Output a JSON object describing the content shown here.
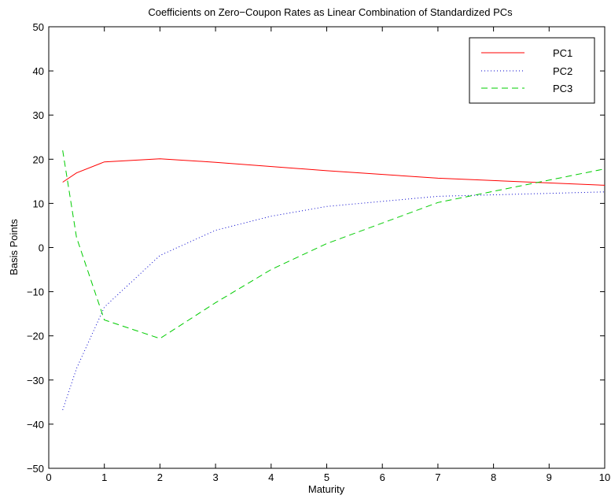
{
  "chart_data": {
    "type": "line",
    "title": "Coefficients on Zero−Coupon Rates as Linear Combination of Standardized PCs",
    "xlabel": "Maturity",
    "ylabel": "Basis Points",
    "xlim": [
      0,
      10
    ],
    "ylim": [
      -50,
      50
    ],
    "xticks": [
      0,
      1,
      2,
      3,
      4,
      5,
      6,
      7,
      8,
      9,
      10
    ],
    "yticks": [
      -50,
      -40,
      -30,
      -20,
      -10,
      0,
      10,
      20,
      30,
      40,
      50
    ],
    "xtick_labels": [
      "0",
      "1",
      "2",
      "3",
      "4",
      "5",
      "6",
      "7",
      "8",
      "9",
      "10"
    ],
    "ytick_labels": [
      "−50",
      "−40",
      "−30",
      "−20",
      "−10",
      "0",
      "10",
      "20",
      "30",
      "40",
      "50"
    ],
    "grid": false,
    "legend_position": "top-right",
    "series": [
      {
        "name": "PC1",
        "color": "#ff0000",
        "dash": "solid",
        "x": [
          0.25,
          0.5,
          1,
          2,
          3,
          5,
          7,
          10
        ],
        "y": [
          14.8,
          16.9,
          19.4,
          20.1,
          19.3,
          17.4,
          15.7,
          14.1
        ]
      },
      {
        "name": "PC2",
        "color": "#0000cc",
        "dash": "dotted",
        "x": [
          0.25,
          0.5,
          1,
          2,
          3,
          4,
          5,
          7,
          10
        ],
        "y": [
          -36.8,
          -27.4,
          -13.5,
          -1.8,
          3.9,
          7.1,
          9.3,
          11.6,
          12.6
        ]
      },
      {
        "name": "PC3",
        "color": "#00cc00",
        "dash": "dashed",
        "x": [
          0.25,
          0.5,
          1,
          2,
          3,
          4,
          5,
          7,
          10
        ],
        "y": [
          22.0,
          2.3,
          -16.4,
          -20.6,
          -12.5,
          -5.0,
          0.9,
          10.2,
          17.8
        ]
      }
    ]
  }
}
